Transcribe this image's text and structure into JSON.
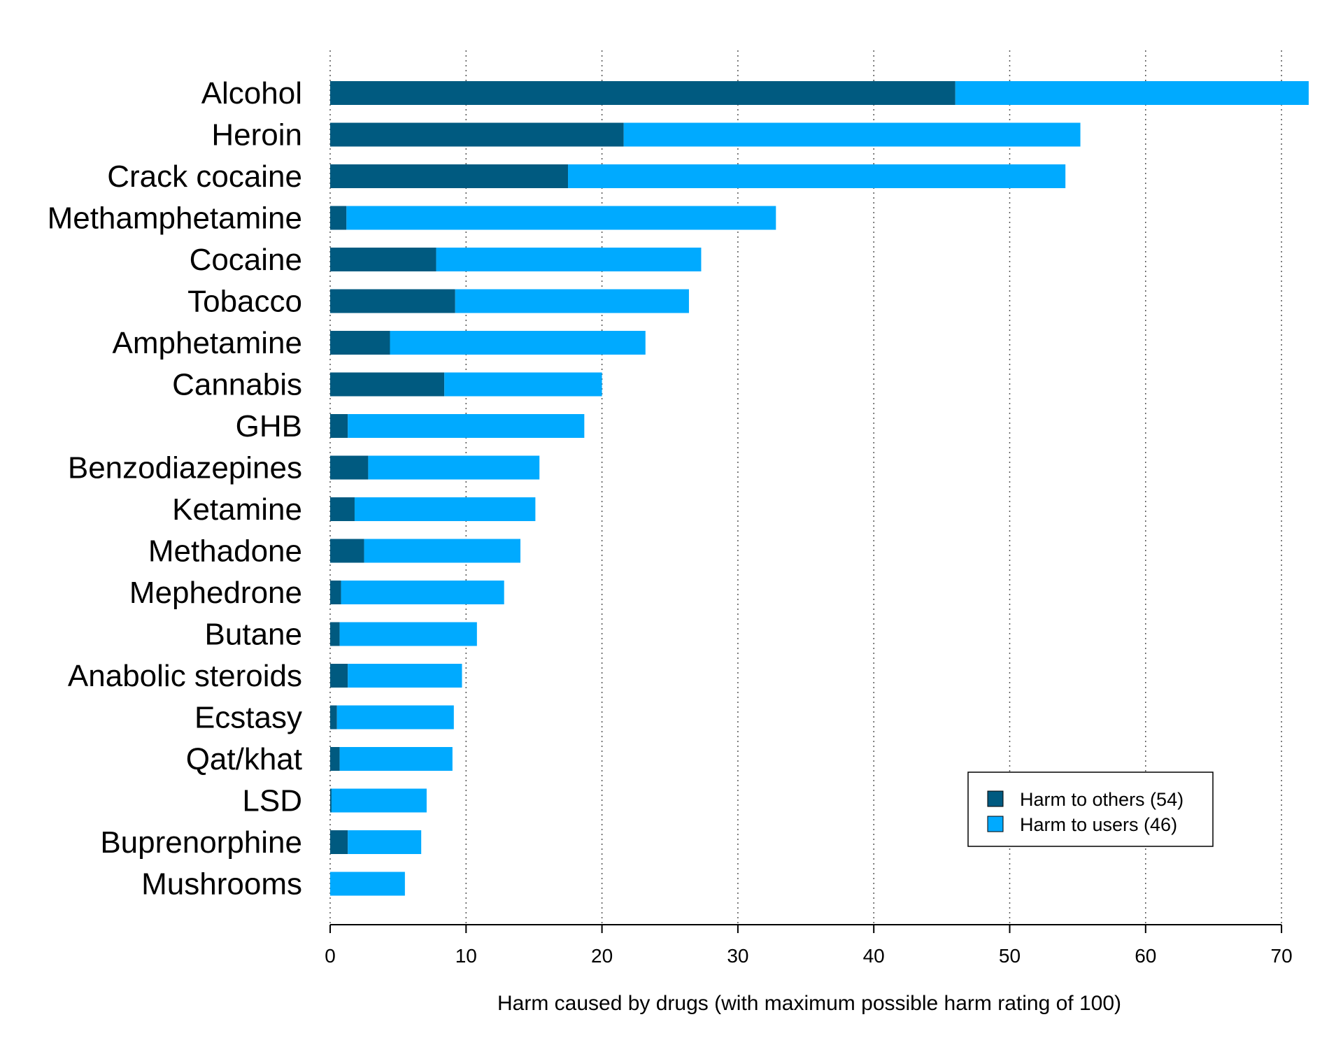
{
  "chart_data": {
    "type": "bar",
    "orientation": "horizontal",
    "stacked": true,
    "title": "",
    "xlabel": "Harm caused by drugs (with maximum possible harm rating of 100)",
    "ylabel": "",
    "xlim": [
      0,
      72
    ],
    "xticks": [
      0,
      10,
      20,
      30,
      40,
      50,
      60,
      70
    ],
    "grid": "vertical dotted",
    "legend_position": "bottom-right",
    "categories": [
      "Alcohol",
      "Heroin",
      "Crack cocaine",
      "Methamphetamine",
      "Cocaine",
      "Tobacco",
      "Amphetamine",
      "Cannabis",
      "GHB",
      "Benzodiazepines",
      "Ketamine",
      "Methadone",
      "Mephedrone",
      "Butane",
      "Anabolic steroids",
      "Ecstasy",
      "Qat/khat",
      "LSD",
      "Buprenorphine",
      "Mushrooms"
    ],
    "series": [
      {
        "name": "Harm to others (54)",
        "color": "#005a80",
        "values": [
          46,
          21.6,
          17.5,
          1.2,
          7.8,
          9.2,
          4.4,
          8.4,
          1.3,
          2.8,
          1.8,
          2.5,
          0.8,
          0.7,
          1.3,
          0.5,
          0.7,
          0.1,
          1.3,
          0.0
        ]
      },
      {
        "name": "Harm to users (46)",
        "color": "#00aaff",
        "values": [
          26,
          33.6,
          36.6,
          31.6,
          19.5,
          17.2,
          18.8,
          11.6,
          17.4,
          12.6,
          13.3,
          11.5,
          12.0,
          10.1,
          8.4,
          8.6,
          8.3,
          7.0,
          5.4,
          5.5
        ]
      }
    ]
  }
}
